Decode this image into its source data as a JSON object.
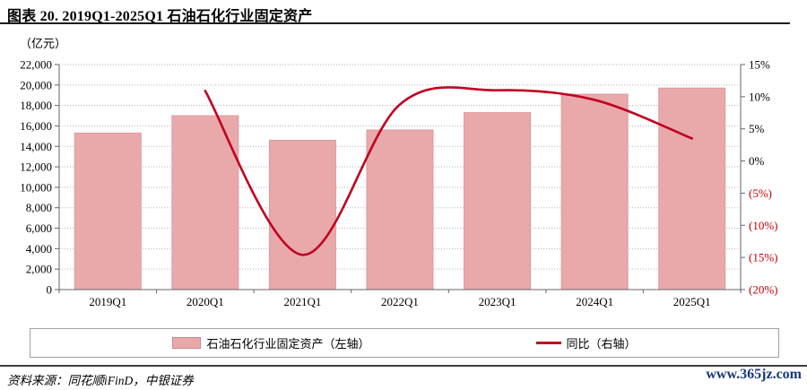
{
  "page": {
    "title": "图表 20. 2019Q1-2025Q1 石油石化行业固定资产",
    "source_note": "资料来源：同花顺iFinD，中银证券",
    "website": "www.365jz.com"
  },
  "colors": {
    "bar_fill": "#E9A9AB",
    "bar_border": "#DE989B",
    "line": "#C00021",
    "negative_tick": "#C00000",
    "axis": "#666666",
    "gridline": "#B3B3B3",
    "website_link": "#16397B"
  },
  "chart_data": {
    "type": "bar",
    "subtype": "bar+line combo, dual axis",
    "title": "2019Q1-2025Q1 石油石化行业固定资产",
    "unit_label": "（亿元）",
    "categories": [
      "2019Q1",
      "2020Q1",
      "2021Q1",
      "2022Q1",
      "2023Q1",
      "2024Q1",
      "2025Q1"
    ],
    "series": [
      {
        "name": "石油石化行业固定资产（左轴）",
        "type": "bar",
        "axis": "left",
        "values": [
          15300,
          17000,
          14600,
          15600,
          17300,
          19100,
          19700
        ]
      },
      {
        "name": "同比（右轴）",
        "type": "line",
        "axis": "right",
        "values": [
          null,
          10.9,
          -14.6,
          8.8,
          11.0,
          9.5,
          3.5
        ]
      }
    ],
    "left_axis": {
      "min": 0,
      "max": 22000,
      "step": 2000,
      "tick_labels": [
        "0",
        "2,000",
        "4,000",
        "6,000",
        "8,000",
        "10,000",
        "12,000",
        "14,000",
        "16,000",
        "18,000",
        "20,000",
        "22,000"
      ]
    },
    "right_axis": {
      "min": -20,
      "max": 15,
      "step": 5,
      "tick_labels": [
        "15%",
        "10%",
        "5%",
        "0%",
        "(5%)",
        "(10%)",
        "(15%)",
        "(20%)"
      ]
    },
    "grid": "horizontal dotted",
    "legend_position": "bottom"
  }
}
